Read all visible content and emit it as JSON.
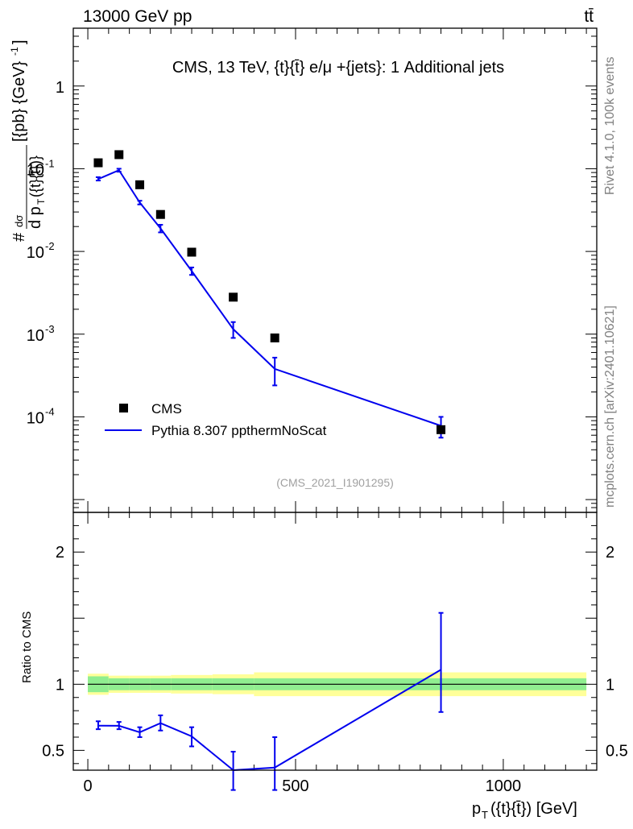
{
  "header": {
    "energy": "13000 GeV pp",
    "process": "tt̄"
  },
  "side_labels": {
    "rivet": "Rivet 4.1.0,  100k events",
    "mcplots": "mcplots.cern.ch [arXiv:2401.10621]"
  },
  "chart_data": {
    "type": "line",
    "title": "CMS, 13 TeV, {t}{t̄} e/μ +{jets}: 1 Additional jets",
    "analysis_id": "(CMS_2021_I1901295)",
    "ylabel_main": "# dσ/d p_T({t}{t̄}) [{pb} {GeV}^-1]",
    "ylabel_ratio": "Ratio to CMS",
    "xlabel": "p_T({t}{t̄}) [GeV]",
    "xlim": [
      -35,
      1225
    ],
    "ylim_main": [
      7e-06,
      5
    ],
    "ylim_ratio": [
      0.35,
      2.3
    ],
    "x_ticks": [
      "0",
      "500",
      "1000"
    ],
    "y_ticks_main": [
      "1",
      "10^-1",
      "10^-2",
      "10^-3",
      "10^-4"
    ],
    "y_ticks_ratio": [
      "2",
      "1",
      "0.5"
    ],
    "legend": [
      "CMS",
      "Pythia 8.307 ppthermNoScat"
    ],
    "x": [
      25,
      75,
      125,
      175,
      250,
      350,
      450,
      850
    ],
    "bin_edges": [
      0,
      50,
      100,
      150,
      200,
      300,
      400,
      500,
      1200
    ],
    "series": [
      {
        "name": "CMS",
        "values": [
          0.118,
          0.148,
          0.064,
          0.028,
          0.0098,
          0.0028,
          0.0009,
          7e-05
        ]
      },
      {
        "name": "Pythia 8.307 ppthermNoScat",
        "values": [
          0.075,
          0.096,
          0.039,
          0.019,
          0.0058,
          0.00115,
          0.00038,
          7.8e-05
        ],
        "err_low": [
          0.072,
          0.092,
          0.037,
          0.017,
          0.0052,
          0.0009,
          0.00024,
          5.6e-05
        ],
        "err_high": [
          0.079,
          0.1,
          0.041,
          0.021,
          0.0064,
          0.0014,
          0.00052,
          0.0001
        ]
      },
      {
        "name": "Ratio to CMS",
        "values": [
          0.687,
          0.686,
          0.637,
          0.706,
          0.606,
          0.35,
          0.37,
          1.11
        ],
        "err_low": [
          0.66,
          0.66,
          0.6,
          0.65,
          0.53,
          0.2,
          0.2,
          0.79
        ],
        "err_high": [
          0.72,
          0.715,
          0.675,
          0.765,
          0.675,
          0.49,
          0.6,
          1.54
        ]
      }
    ],
    "bands": {
      "inner": [
        [
          0.94,
          1.06
        ],
        [
          0.955,
          1.045
        ],
        [
          0.955,
          1.045
        ],
        [
          0.955,
          1.045
        ],
        [
          0.955,
          1.045
        ],
        [
          0.955,
          1.045
        ],
        [
          0.955,
          1.045
        ],
        [
          0.955,
          1.045
        ]
      ],
      "outer": [
        [
          0.92,
          1.08
        ],
        [
          0.935,
          1.065
        ],
        [
          0.935,
          1.065
        ],
        [
          0.935,
          1.065
        ],
        [
          0.93,
          1.07
        ],
        [
          0.925,
          1.075
        ],
        [
          0.91,
          1.09
        ],
        [
          0.91,
          1.09
        ]
      ]
    }
  }
}
